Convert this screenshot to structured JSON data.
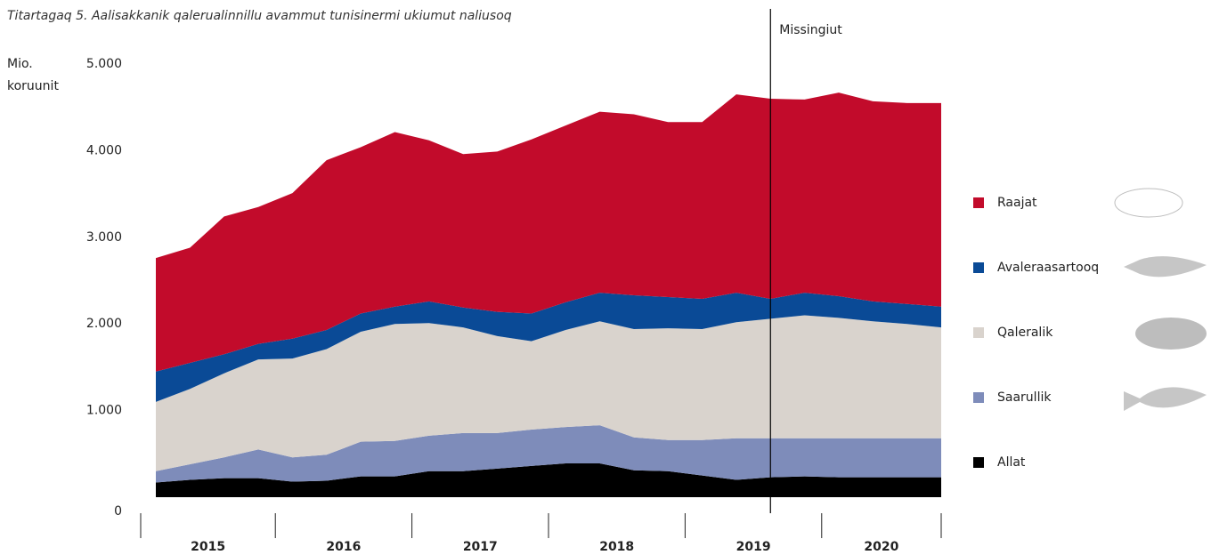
{
  "chart_data": {
    "type": "stacked_area",
    "title": "Titartagaq 5. Aalisakkanik qalerualinnillu avammut tunisinermi ukiumut naliusoq",
    "y_label": [
      "Mio.",
      "koruunit"
    ],
    "annotation": "Missingiut",
    "years": [
      "2015",
      "2016",
      "2017",
      "2018",
      "2019",
      "2020"
    ],
    "categories": [
      null,
      null,
      null,
      null,
      null,
      null,
      null,
      null,
      null,
      null,
      null,
      null,
      null,
      null,
      null,
      null,
      null,
      null,
      null,
      null,
      null,
      null,
      null,
      null
    ],
    "ylim": [
      0,
      5000
    ],
    "yticks": [
      0,
      {
        "value": 1000,
        "label": "1.000"
      },
      {
        "value": 2000,
        "label": "2.000"
      },
      {
        "value": 3000,
        "label": "3.000"
      },
      {
        "value": 4000,
        "label": "4.000"
      },
      {
        "value": 5000,
        "label": "5.000"
      }
    ],
    "series": [
      {
        "name": "Allat",
        "color": "#000000",
        "values": [
          170,
          200,
          220,
          220,
          180,
          190,
          240,
          240,
          300,
          300,
          330,
          360,
          390,
          390,
          310,
          300,
          250,
          200,
          230,
          240,
          230,
          230,
          230,
          230
        ]
      },
      {
        "name": "Saarullik",
        "color": "#7e8cba",
        "values": [
          130,
          180,
          240,
          330,
          280,
          300,
          400,
          410,
          410,
          440,
          410,
          420,
          420,
          440,
          380,
          360,
          410,
          480,
          450,
          440,
          450,
          450,
          450,
          450
        ]
      },
      {
        "name": "Qaleralik",
        "color": "#d9d3cd",
        "values": [
          800,
          870,
          970,
          1040,
          1140,
          1220,
          1270,
          1350,
          1300,
          1220,
          1120,
          1020,
          1120,
          1200,
          1250,
          1290,
          1280,
          1340,
          1380,
          1420,
          1390,
          1350,
          1320,
          1280
        ]
      },
      {
        "name": "Avaleraasartooq",
        "color": "#0a4a96",
        "values": [
          350,
          300,
          220,
          180,
          230,
          220,
          210,
          200,
          250,
          230,
          280,
          320,
          320,
          330,
          390,
          360,
          350,
          340,
          230,
          260,
          250,
          230,
          230,
          240
        ]
      },
      {
        "name": "Raajat",
        "color": "#c20b2b",
        "values": [
          1310,
          1330,
          1590,
          1580,
          1680,
          1960,
          1920,
          2015,
          1860,
          1770,
          1850,
          2010,
          2040,
          2090,
          2090,
          2020,
          2040,
          2290,
          2310,
          2230,
          2350,
          2310,
          2320,
          2350
        ]
      }
    ]
  }
}
